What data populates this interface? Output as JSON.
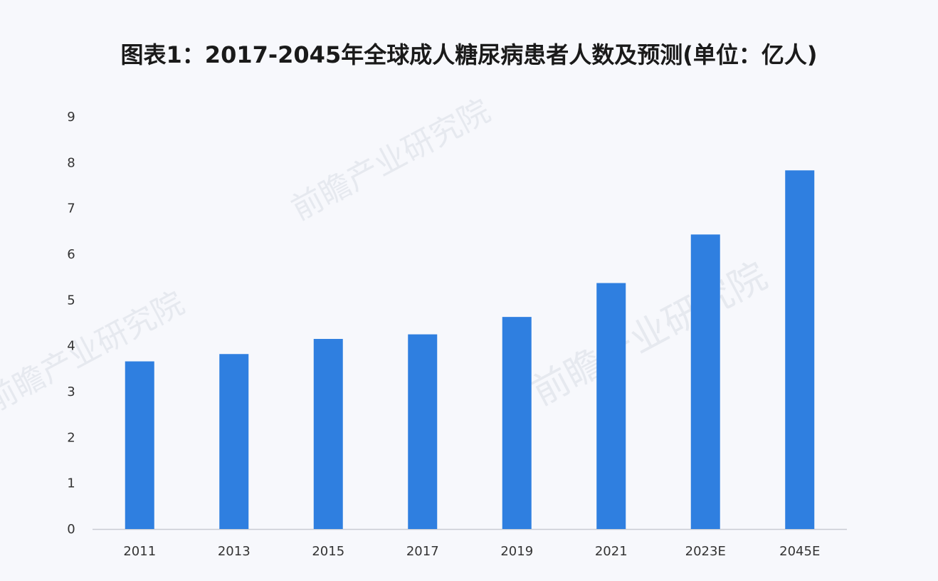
{
  "chart_data": {
    "type": "bar",
    "title": "图表1：2017-2045年全球成人糖尿病患者人数及预测(单位：亿人)",
    "categories": [
      "2011",
      "2013",
      "2015",
      "2017",
      "2019",
      "2021",
      "2023E",
      "2045E"
    ],
    "series": [
      {
        "values": [
          3.66,
          3.82,
          4.15,
          4.25,
          4.63,
          5.37,
          6.43,
          7.83
        ]
      }
    ],
    "xlabel": "",
    "ylabel": "",
    "ylim": [
      0,
      9
    ],
    "yticks": [
      0,
      1,
      2,
      3,
      4,
      5,
      6,
      7,
      8,
      9
    ],
    "grid": false,
    "legend": "none",
    "bar_color": "#2f7fe0",
    "axis_color": "#c9ccd3"
  },
  "watermark": {
    "text": "前瞻产业研究院"
  }
}
